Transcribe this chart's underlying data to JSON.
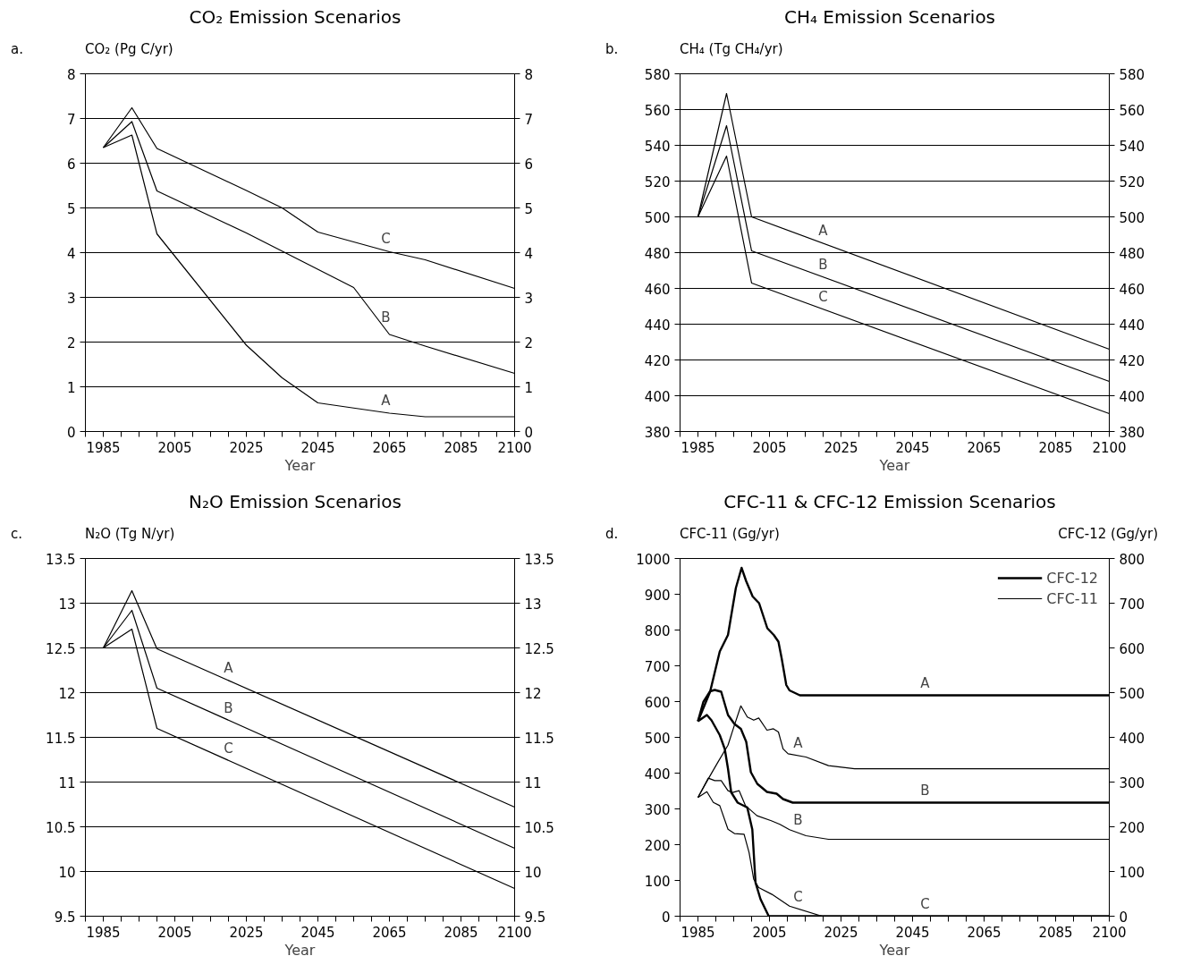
{
  "chart_data": [
    {
      "type": "line",
      "title": "CO₂ Emission Scenarios",
      "xlabel": "Year",
      "ylabel": "CO₂ (Pg C/yr)",
      "xlim": [
        1980,
        2100
      ],
      "ylim": [
        0,
        8
      ],
      "y2lim": [
        0,
        8
      ],
      "xticks": [
        {
          "value": 1980,
          "label": null
        },
        1985,
        {
          "value": 1990,
          "label": null
        },
        {
          "value": 1995,
          "label": null
        },
        {
          "value": 2000,
          "label": null
        },
        2005,
        {
          "value": 2010,
          "label": null
        },
        {
          "value": 2015,
          "label": null
        },
        {
          "value": 2020,
          "label": null
        },
        2025,
        {
          "value": 2030,
          "label": null
        },
        {
          "value": 2035,
          "label": null
        },
        {
          "value": 2040,
          "label": null
        },
        2045,
        {
          "value": 2050,
          "label": null
        },
        {
          "value": 2055,
          "label": null
        },
        {
          "value": 2060,
          "label": null
        },
        2065,
        {
          "value": 2070,
          "label": null
        },
        {
          "value": 2075,
          "label": null
        },
        {
          "value": 2080,
          "label": null
        },
        2085,
        {
          "value": 2090,
          "label": null
        },
        {
          "value": 2095,
          "label": null
        },
        2100
      ],
      "yticks": [
        0,
        1,
        2,
        3,
        4,
        5,
        6,
        7,
        8
      ],
      "y2ticks": [
        0,
        1,
        2,
        3,
        4,
        5,
        6,
        7,
        8
      ],
      "grid": "y",
      "line_style": "solid",
      "series": [
        {
          "color": "#000000",
          "x": [
            1985,
            1993,
            2000,
            2025,
            2035,
            2045,
            2065,
            2075,
            2100
          ],
          "values": [
            6.35,
            6.63,
            4.42,
            1.93,
            1.2,
            0.64,
            0.41,
            0.33,
            0.33
          ]
        },
        {
          "color": "#000000",
          "x": [
            1985,
            1993,
            2000,
            2025,
            2055,
            2065,
            2075,
            2100
          ],
          "values": [
            6.35,
            6.93,
            5.38,
            4.44,
            3.22,
            2.17,
            1.91,
            1.3
          ]
        },
        {
          "color": "#000000",
          "x": [
            1985,
            1993,
            2000,
            2025,
            2035,
            2045,
            2065,
            2075,
            2100
          ],
          "values": [
            6.35,
            7.24,
            6.33,
            5.39,
            5.0,
            4.46,
            4.02,
            3.84,
            3.2
          ]
        }
      ],
      "annotations": [
        "a.",
        {
          "text": "C",
          "x": 2064,
          "y": 4.04
        },
        {
          "text": "B",
          "x": 2064,
          "y": 2.27
        },
        {
          "text": "A",
          "x": 2064,
          "y": 0.42
        }
      ]
    },
    {
      "type": "line",
      "title": "CH₄ Emission Scenarios",
      "xlabel": "Year",
      "ylabel": "CH₄ (Tg CH₄/yr)",
      "xlim": [
        1980,
        2100
      ],
      "ylim": [
        380,
        580
      ],
      "y2lim": [
        380,
        580
      ],
      "xticks": [
        {
          "value": 1980,
          "label": null
        },
        1985,
        {
          "value": 1990,
          "label": null
        },
        {
          "value": 1995,
          "label": null
        },
        {
          "value": 2000,
          "label": null
        },
        2005,
        {
          "value": 2010,
          "label": null
        },
        {
          "value": 2015,
          "label": null
        },
        {
          "value": 2020,
          "label": null
        },
        2025,
        {
          "value": 2030,
          "label": null
        },
        {
          "value": 2035,
          "label": null
        },
        {
          "value": 2040,
          "label": null
        },
        2045,
        {
          "value": 2050,
          "label": null
        },
        {
          "value": 2055,
          "label": null
        },
        {
          "value": 2060,
          "label": null
        },
        2065,
        {
          "value": 2070,
          "label": null
        },
        {
          "value": 2075,
          "label": null
        },
        {
          "value": 2080,
          "label": null
        },
        2085,
        {
          "value": 2090,
          "label": null
        },
        {
          "value": 2095,
          "label": null
        },
        2100
      ],
      "yticks": [
        380,
        400,
        420,
        440,
        460,
        480,
        500,
        520,
        540,
        560,
        580
      ],
      "y2ticks": [
        380,
        400,
        420,
        440,
        460,
        480,
        500,
        520,
        540,
        560,
        580
      ],
      "grid": "y",
      "line_style": "solid",
      "series": [
        {
          "color": "#000000",
          "x": [
            1985,
            1993,
            2000,
            2100
          ],
          "values": [
            500,
            569,
            500,
            426
          ]
        },
        {
          "color": "#000000",
          "x": [
            1985,
            1993,
            2000,
            2100
          ],
          "values": [
            500,
            551,
            481,
            408
          ]
        },
        {
          "color": "#000000",
          "x": [
            1985,
            1993,
            2000,
            2100
          ],
          "values": [
            500,
            534,
            463,
            390
          ]
        }
      ],
      "annotations": [
        "b.",
        {
          "text": "A",
          "x": 2020,
          "y": 485.2
        },
        {
          "text": "B",
          "x": 2020,
          "y": 466.4
        },
        {
          "text": "C",
          "x": 2020,
          "y": 448.4
        }
      ]
    },
    {
      "type": "line",
      "title": "N₂O Emission Scenarios",
      "xlabel": "Year",
      "ylabel": "N₂O (Tg N/yr)",
      "xlim": [
        1980,
        2100
      ],
      "ylim": [
        9.5,
        13.5
      ],
      "y2lim": [
        9.5,
        13.5
      ],
      "xticks": [
        {
          "value": 1980,
          "label": null
        },
        1985,
        {
          "value": 1990,
          "label": null
        },
        {
          "value": 1995,
          "label": null
        },
        {
          "value": 2000,
          "label": null
        },
        2005,
        {
          "value": 2010,
          "label": null
        },
        {
          "value": 2015,
          "label": null
        },
        {
          "value": 2020,
          "label": null
        },
        2025,
        {
          "value": 2030,
          "label": null
        },
        {
          "value": 2035,
          "label": null
        },
        {
          "value": 2040,
          "label": null
        },
        2045,
        {
          "value": 2050,
          "label": null
        },
        {
          "value": 2055,
          "label": null
        },
        {
          "value": 2060,
          "label": null
        },
        2065,
        {
          "value": 2070,
          "label": null
        },
        {
          "value": 2075,
          "label": null
        },
        {
          "value": 2080,
          "label": null
        },
        2085,
        {
          "value": 2090,
          "label": null
        },
        {
          "value": 2095,
          "label": null
        },
        2100
      ],
      "yticks": [
        9.5,
        10,
        10.5,
        11,
        11.5,
        12,
        12.5,
        13,
        13.5
      ],
      "y2ticks": [
        9.5,
        10,
        10.5,
        11,
        11.5,
        12,
        12.5,
        13,
        13.5
      ],
      "grid": "y",
      "line_style": "solid",
      "series": [
        {
          "color": "#000000",
          "x": [
            1985,
            1993,
            2000,
            2100
          ],
          "values": [
            12.5,
            13.14,
            12.49,
            10.72
          ]
        },
        {
          "color": "#000000",
          "x": [
            1985,
            1993,
            2000,
            2100
          ],
          "values": [
            12.5,
            12.92,
            12.05,
            10.26
          ]
        },
        {
          "color": "#000000",
          "x": [
            1985,
            1993,
            2000,
            2100
          ],
          "values": [
            12.5,
            12.71,
            11.6,
            9.81
          ]
        }
      ],
      "annotations": [
        "c.",
        {
          "text": "A",
          "x": 2020,
          "y": 12.14
        },
        {
          "text": "B",
          "x": 2020,
          "y": 11.69
        },
        {
          "text": "C",
          "x": 2020,
          "y": 11.24
        }
      ]
    },
    {
      "type": "line",
      "title": "CFC-11 & CFC-12 Emission Scenarios",
      "xlabel": "Year",
      "ylabel": "CFC-11 (Gg/yr)",
      "y2label": "CFC-12 (Gg/yr)",
      "xlim": [
        1980,
        2100
      ],
      "ylim": [
        0,
        1000
      ],
      "y2lim": [
        0,
        800
      ],
      "xticks": [
        {
          "value": 1980,
          "label": null
        },
        1985,
        {
          "value": 1990,
          "label": null
        },
        {
          "value": 1995,
          "label": null
        },
        {
          "value": 2000,
          "label": null
        },
        2005,
        {
          "value": 2010,
          "label": null
        },
        {
          "value": 2015,
          "label": null
        },
        {
          "value": 2020,
          "label": null
        },
        2025,
        {
          "value": 2030,
          "label": null
        },
        {
          "value": 2035,
          "label": null
        },
        {
          "value": 2040,
          "label": null
        },
        2045,
        {
          "value": 2050,
          "label": null
        },
        {
          "value": 2055,
          "label": null
        },
        {
          "value": 2060,
          "label": null
        },
        2065,
        {
          "value": 2070,
          "label": null
        },
        {
          "value": 2075,
          "label": null
        },
        {
          "value": 2080,
          "label": null
        },
        2085,
        {
          "value": 2090,
          "label": null
        },
        {
          "value": 2095,
          "label": null
        },
        2100
      ],
      "yticks": [
        0,
        100,
        200,
        300,
        400,
        500,
        600,
        700,
        800,
        900,
        1000
      ],
      "y2ticks": [
        0,
        100,
        200,
        300,
        400,
        500,
        600,
        700,
        800
      ],
      "grid": false,
      "legend": "top right",
      "line_style": "solid",
      "series": [
        {
          "name": "CFC-12",
          "color": "#000000",
          "axis": "y2",
          "x": [
            1985,
            1988.4,
            1991.1,
            1993.4,
            1995.6,
            1997.2,
            1998.5,
            2000.3,
            2002.1,
            2004.4,
            2006.2,
            2007.5,
            2008.4,
            2009.7,
            2010.6,
            2013.5,
            2100
          ],
          "values": [
            436,
            502,
            592,
            629,
            734,
            779,
            749,
            715,
            700,
            644,
            629,
            614,
            577,
            517,
            505,
            494,
            494
          ]
        },
        {
          "color": "#000000",
          "axis": "y2",
          "x": [
            1985,
            1986.5,
            1988.4,
            1989.7,
            1991.5,
            1993.4,
            1995.2,
            1997.0,
            1998.5,
            1999.8,
            2001.6,
            2004.3,
            2007.0,
            2008.8,
            2011.5,
            2100
          ],
          "values": [
            436,
            479,
            503,
            506,
            502,
            450,
            430,
            419,
            390,
            322,
            296,
            278,
            274,
            262,
            254,
            254
          ]
        },
        {
          "color": "#000000",
          "axis": "y2",
          "x": [
            1985,
            1987.5,
            1988.8,
            1991.1,
            1992.5,
            1993.4,
            1994.3,
            1996.1,
            1998.8,
            2000.2,
            2001.1,
            2002.5,
            2004.8,
            2100
          ],
          "values": [
            436,
            450,
            438,
            405,
            374,
            330,
            277,
            254,
            243,
            194,
            75,
            38,
            0,
            0
          ]
        },
        {
          "name": "CFC-11",
          "color": "#000000",
          "x": [
            1985,
            1987.9,
            1990.6,
            1993.4,
            1995.2,
            1997.0,
            1998.8,
            2000.6,
            2002.0,
            2004.3,
            2006.1,
            2007.5,
            2008.8,
            2010.2,
            2015.2,
            2021.5,
            2028.8,
            2100
          ],
          "values": [
            332,
            384,
            431,
            478,
            534,
            588,
            557,
            548,
            554,
            520,
            524,
            515,
            468,
            454,
            445,
            421,
            412,
            412
          ]
        },
        {
          "color": "#000000",
          "x": [
            1985,
            1987.9,
            1989.7,
            1991.5,
            1993.4,
            1994.7,
            1996.5,
            1998.3,
            2001.5,
            2005.5,
            2007.9,
            2010.6,
            2015.2,
            2021.5,
            2100
          ],
          "values": [
            332,
            386,
            379,
            379,
            351,
            346,
            351,
            309,
            281,
            267,
            257,
            242,
            225,
            215,
            215
          ]
        },
        {
          "color": "#000000",
          "x": [
            1985,
            1987.5,
            1989.3,
            1991.1,
            1993.4,
            1995.2,
            1997.9,
            1999.3,
            2000.6,
            2002.0,
            2005.7,
            2010.6,
            2019.7,
            2100
          ],
          "values": [
            332,
            348,
            318,
            309,
            243,
            231,
            229,
            178,
            103,
            80,
            61,
            28,
            0,
            0
          ]
        }
      ],
      "annotations": [
        "d.",
        {
          "text": "A",
          "x": 2048.5,
          "y": 617.5
        },
        {
          "text": "A",
          "x": 2013,
          "y": 449
        },
        {
          "text": "B",
          "x": 2048.5,
          "y": 317.5
        },
        {
          "text": "B",
          "x": 2013,
          "y": 233
        },
        {
          "text": "C",
          "x": 2013,
          "y": 18
        },
        {
          "text": "C",
          "x": 2048.5,
          "y": 0
        }
      ]
    }
  ]
}
